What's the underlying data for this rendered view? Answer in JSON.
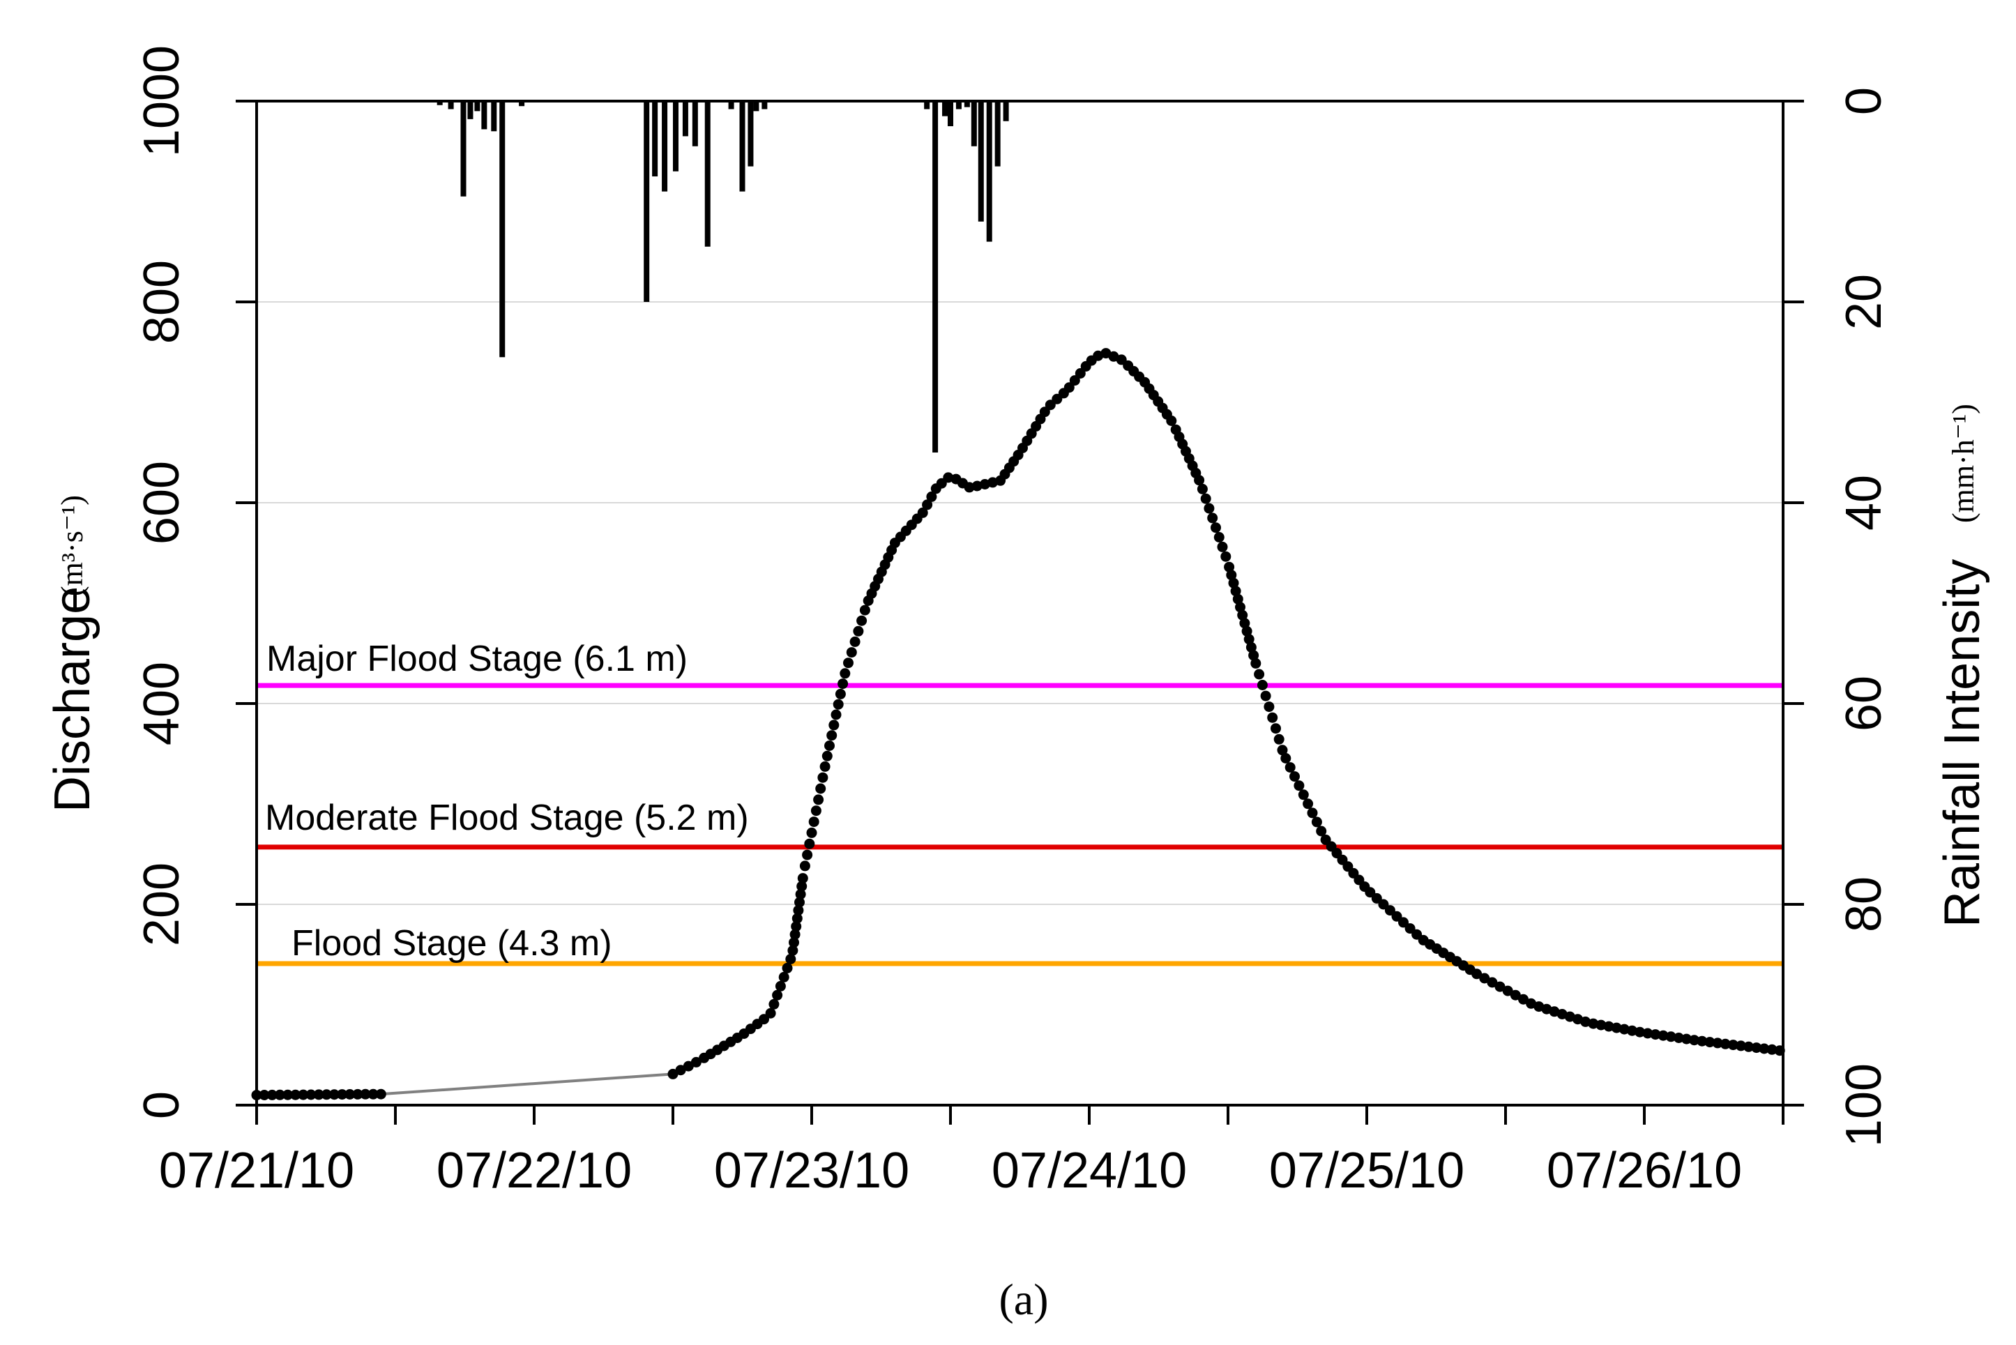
{
  "chart_data": {
    "type": "line",
    "caption": "(a)",
    "xlabel": "",
    "ylabel": "Discharge",
    "ylabel_unit": "(m³·s⁻¹)",
    "y2label": "Rainfall Intensity",
    "y2label_unit": "(mm·h⁻¹)",
    "xlim": [
      0,
      5.5
    ],
    "ylim": [
      0,
      1000
    ],
    "y2lim": [
      0,
      100
    ],
    "y2_inverted": true,
    "x_ticks": [
      {
        "value": 0,
        "label": "07/21/10"
      },
      {
        "value": 1,
        "label": "07/22/10"
      },
      {
        "value": 2,
        "label": "07/23/10"
      },
      {
        "value": 3,
        "label": "07/24/10"
      },
      {
        "value": 4,
        "label": "07/25/10"
      },
      {
        "value": 5,
        "label": "07/26/10"
      }
    ],
    "y_ticks": [
      {
        "value": 0,
        "label": "0"
      },
      {
        "value": 200,
        "label": "200"
      },
      {
        "value": 400,
        "label": "400"
      },
      {
        "value": 600,
        "label": "600"
      },
      {
        "value": 800,
        "label": "800"
      },
      {
        "value": 1000,
        "label": "1000"
      }
    ],
    "y2_ticks": [
      {
        "value": 0,
        "label": "0"
      },
      {
        "value": 20,
        "label": "20"
      },
      {
        "value": 40,
        "label": "40"
      },
      {
        "value": 60,
        "label": "60"
      },
      {
        "value": 80,
        "label": "80"
      },
      {
        "value": 100,
        "label": "100"
      }
    ],
    "gridlines_y": [
      200,
      400,
      600,
      800
    ],
    "flood_stages": [
      {
        "name": "Major Flood Stage (6.1 m)",
        "value": 418,
        "color": "#ff00ff"
      },
      {
        "name": "Moderate Flood Stage (5.2 m)",
        "value": 257,
        "color": "#e00000"
      },
      {
        "name": "Flood Stage (4.3 m)",
        "value": 141,
        "color": "#ffa500"
      }
    ],
    "discharge_keypoints": [
      [
        0.0,
        10
      ],
      [
        0.45,
        11
      ],
      [
        1.5,
        31
      ],
      [
        1.6,
        45
      ],
      [
        1.75,
        70
      ],
      [
        1.85,
        90
      ],
      [
        1.93,
        150
      ],
      [
        1.97,
        230
      ],
      [
        2.05,
        340
      ],
      [
        2.12,
        430
      ],
      [
        2.2,
        500
      ],
      [
        2.3,
        560
      ],
      [
        2.4,
        590
      ],
      [
        2.45,
        615
      ],
      [
        2.5,
        627
      ],
      [
        2.57,
        615
      ],
      [
        2.68,
        622
      ],
      [
        2.75,
        650
      ],
      [
        2.85,
        695
      ],
      [
        2.92,
        712
      ],
      [
        3.0,
        740
      ],
      [
        3.05,
        750
      ],
      [
        3.12,
        742
      ],
      [
        3.2,
        720
      ],
      [
        3.3,
        680
      ],
      [
        3.4,
        620
      ],
      [
        3.5,
        540
      ],
      [
        3.6,
        440
      ],
      [
        3.7,
        350
      ],
      [
        3.85,
        265
      ],
      [
        4.0,
        215
      ],
      [
        4.2,
        165
      ],
      [
        4.4,
        130
      ],
      [
        4.6,
        100
      ],
      [
        4.8,
        82
      ],
      [
        5.0,
        72
      ],
      [
        5.2,
        64
      ],
      [
        5.35,
        59
      ],
      [
        5.5,
        54
      ]
    ],
    "data_gap": {
      "from": 0.45,
      "to": 1.5
    },
    "rainfall": [
      {
        "x": 0.66,
        "mm": 0.4
      },
      {
        "x": 0.7,
        "mm": 0.8
      },
      {
        "x": 0.745,
        "mm": 9.5
      },
      {
        "x": 0.77,
        "mm": 1.8
      },
      {
        "x": 0.795,
        "mm": 1.0
      },
      {
        "x": 0.82,
        "mm": 2.8
      },
      {
        "x": 0.855,
        "mm": 3.0
      },
      {
        "x": 0.885,
        "mm": 25.5
      },
      {
        "x": 0.955,
        "mm": 0.5
      },
      {
        "x": 1.405,
        "mm": 20.0
      },
      {
        "x": 1.435,
        "mm": 7.5
      },
      {
        "x": 1.47,
        "mm": 9.0
      },
      {
        "x": 1.51,
        "mm": 7.0
      },
      {
        "x": 1.545,
        "mm": 3.5
      },
      {
        "x": 1.58,
        "mm": 4.5
      },
      {
        "x": 1.625,
        "mm": 14.5
      },
      {
        "x": 1.71,
        "mm": 0.8
      },
      {
        "x": 1.75,
        "mm": 9.0
      },
      {
        "x": 1.78,
        "mm": 6.5
      },
      {
        "x": 1.8,
        "mm": 1.0
      },
      {
        "x": 1.83,
        "mm": 0.8
      },
      {
        "x": 2.415,
        "mm": 0.8
      },
      {
        "x": 2.445,
        "mm": 35.0
      },
      {
        "x": 2.48,
        "mm": 1.5
      },
      {
        "x": 2.5,
        "mm": 2.5
      },
      {
        "x": 2.53,
        "mm": 0.8
      },
      {
        "x": 2.56,
        "mm": 0.6
      },
      {
        "x": 2.585,
        "mm": 4.5
      },
      {
        "x": 2.61,
        "mm": 12.0
      },
      {
        "x": 2.64,
        "mm": 14.0
      },
      {
        "x": 2.67,
        "mm": 6.5
      },
      {
        "x": 2.7,
        "mm": 2.0
      }
    ]
  }
}
